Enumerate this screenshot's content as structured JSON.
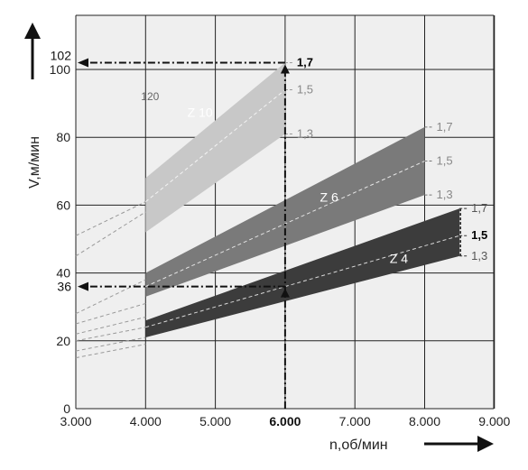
{
  "chart_data": {
    "type": "area",
    "xlabel": "n,об/мин",
    "ylabel": "V,м/мин",
    "xlim": [
      3000,
      9000
    ],
    "ylim": [
      0,
      110
    ],
    "grid": true,
    "x_ticks": [
      3000,
      4000,
      5000,
      6000,
      7000,
      8000,
      9000
    ],
    "x_tick_labels": [
      "3.000",
      "4.000",
      "5.000",
      "6.000",
      "7.000",
      "8.000",
      "9.000"
    ],
    "y_ticks": [
      0,
      20,
      40,
      60,
      80,
      100
    ],
    "y_tick_labels": [
      "0",
      "20",
      "40",
      "60",
      "80",
      "100"
    ],
    "highlight_x_label": "6.000",
    "bands": [
      {
        "name": "Z 10",
        "color": "#c8c8c8",
        "x_range": [
          4000,
          6000
        ],
        "lower": [
          52,
          81
        ],
        "upper": [
          68,
          102
        ],
        "edge_labels": [
          "1,7",
          "1,5",
          "1,3"
        ],
        "edge_values": [
          102,
          94,
          81
        ]
      },
      {
        "name": "Z 6",
        "color": "#7a7a7a",
        "x_range": [
          4000,
          8000
        ],
        "lower": [
          33,
          63
        ],
        "upper": [
          40,
          83
        ],
        "edge_labels": [
          "1,7",
          "1,5",
          "1,3"
        ],
        "edge_values": [
          83,
          73,
          63
        ]
      },
      {
        "name": "Z 4",
        "color": "#3c3c3c",
        "x_range": [
          4000,
          8500
        ],
        "lower": [
          21,
          45
        ],
        "upper": [
          26,
          59
        ],
        "edge_labels": [
          "1,7",
          "1,5",
          "1,3"
        ],
        "edge_values": [
          59,
          51,
          45
        ]
      }
    ],
    "extensions": [
      {
        "from": [
          3000,
          51
        ],
        "to": [
          4000,
          61
        ]
      },
      {
        "from": [
          3000,
          45
        ],
        "to": [
          4000,
          58
        ]
      },
      {
        "from": [
          3000,
          28
        ],
        "to": [
          4000,
          38
        ]
      },
      {
        "from": [
          3000,
          25
        ],
        "to": [
          4000,
          31
        ]
      },
      {
        "from": [
          3000,
          22
        ],
        "to": [
          4000,
          27
        ]
      },
      {
        "from": [
          3000,
          20
        ],
        "to": [
          4000,
          24
        ]
      },
      {
        "from": [
          3000,
          17
        ],
        "to": [
          4000,
          21
        ]
      },
      {
        "from": [
          3000,
          15
        ],
        "to": [
          4000,
          19
        ]
      }
    ],
    "inner_lines": [
      {
        "from": [
          4000,
          61
        ],
        "to": [
          6000,
          94
        ]
      },
      {
        "from": [
          4000,
          36
        ],
        "to": [
          8000,
          73
        ]
      },
      {
        "from": [
          4000,
          24
        ],
        "to": [
          8500,
          51
        ]
      }
    ],
    "annotations": [
      {
        "text": "102",
        "y": 102
      },
      {
        "text": "36",
        "y": 36
      },
      {
        "text": "120",
        "x": 4000,
        "y": 92
      }
    ],
    "readings": [
      {
        "x": 6000,
        "y": 102
      },
      {
        "x": 6000,
        "y": 36
      }
    ]
  }
}
